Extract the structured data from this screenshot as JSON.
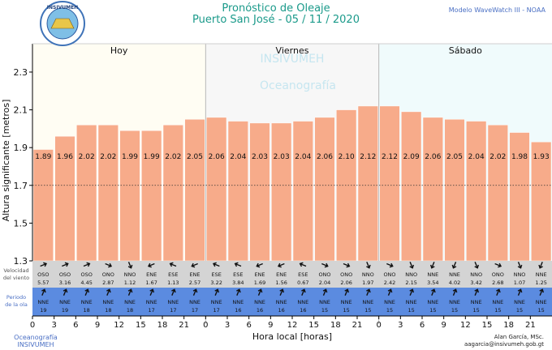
{
  "header": {
    "title": "Pronóstico de Oleaje",
    "subtitle": "Puerto San José  -  05 / 11 / 2020",
    "model": "Modelo WaveWatch III - NOAA",
    "logo_text": "INSIVUMEH",
    "watermark1": "INSIVUMEH",
    "watermark2": "Oceanografía"
  },
  "footer": {
    "left_line1": "Oceanografía",
    "left_line2": "INSIVUMEH",
    "right_line1": "Alan García, MSc.",
    "right_line2": "aagarcia@insivumeh.gob.gt"
  },
  "row_labels": {
    "wind": [
      "Velocidad",
      "del viento"
    ],
    "period": [
      "Periodo",
      "de la ola"
    ]
  },
  "chart_data": {
    "type": "bar",
    "title": "Pronóstico de Oleaje",
    "xlabel": "Hora local [horas]",
    "ylabel": "Altura significante [metros]",
    "ylim": [
      1.3,
      2.45
    ],
    "yticks": [
      1.3,
      1.5,
      1.7,
      1.9,
      2.1,
      2.3
    ],
    "reference_line": 1.7,
    "days": [
      "Hoy",
      "Viernes",
      "Sábado"
    ],
    "x": [
      "0",
      "3",
      "6",
      "9",
      "12",
      "15",
      "18",
      "21",
      "0",
      "3",
      "6",
      "9",
      "12",
      "15",
      "18",
      "21",
      "0",
      "3",
      "6",
      "9",
      "12",
      "15",
      "18",
      "21"
    ],
    "values": [
      1.89,
      1.96,
      2.02,
      2.02,
      1.99,
      1.99,
      2.02,
      2.05,
      2.06,
      2.04,
      2.03,
      2.03,
      2.04,
      2.06,
      2.1,
      2.12,
      2.12,
      2.09,
      2.06,
      2.05,
      2.04,
      2.02,
      1.98,
      1.93
    ],
    "labels": [
      "1.89",
      "1.96",
      "2.02",
      "2.02",
      "1.99",
      "1.99",
      "2.02",
      "2.05",
      "2.06",
      "2.04",
      "2.03",
      "2.03",
      "2.04",
      "2.06",
      "2.10",
      "2.12",
      "2.12",
      "2.09",
      "2.06",
      "2.05",
      "2.04",
      "2.02",
      "1.98",
      "1.93"
    ],
    "wind_dir": [
      "OSO",
      "OSO",
      "OSO",
      "ONO",
      "NNO",
      "ENE",
      "ESE",
      "ENE",
      "ESE",
      "ESE",
      "ENE",
      "ENE",
      "ESE",
      "ONO",
      "ONO",
      "NNO",
      "ONO",
      "NNO",
      "NNE",
      "NNE",
      "NNO",
      "ONO",
      "NNO",
      "NNE"
    ],
    "wind_speed": [
      "5.57",
      "3.16",
      "4.45",
      "2.87",
      "1.12",
      "1.67",
      "1.13",
      "2.57",
      "3.22",
      "3.84",
      "1.69",
      "1.56",
      "0.67",
      "2.04",
      "2.06",
      "1.97",
      "2.42",
      "2.15",
      "3.54",
      "4.02",
      "3.42",
      "2.68",
      "1.07",
      "1.25"
    ],
    "wave_dir": [
      "NNE",
      "NNE",
      "NNE",
      "NNE",
      "NNE",
      "NNE",
      "NNE",
      "NNE",
      "NNE",
      "NNE",
      "NNE",
      "NNE",
      "NNE",
      "NNE",
      "NNE",
      "NNE",
      "NNE",
      "NNE",
      "NNE",
      "NNE",
      "NNE",
      "NNE",
      "NNE",
      "NNE"
    ],
    "wave_period": [
      "19",
      "19",
      "18",
      "18",
      "18",
      "17",
      "17",
      "17",
      "17",
      "16",
      "16",
      "16",
      "16",
      "15",
      "15",
      "15",
      "15",
      "15",
      "15",
      "15",
      "15",
      "15",
      "15",
      "15"
    ],
    "colors": {
      "bar": "#f7ab8a",
      "bar_edge": "#ffffff",
      "wave_row": "#5b8be0",
      "wind_row": "#d4d4d4"
    }
  }
}
